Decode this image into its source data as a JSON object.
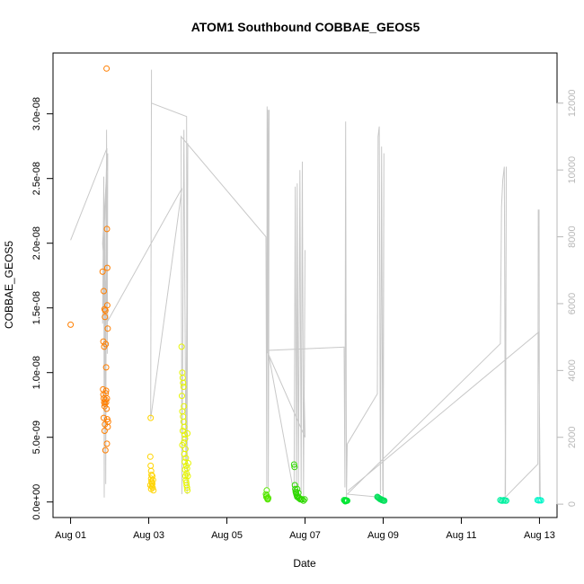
{
  "chart_data": {
    "type": "scatter",
    "title": "ATOM1 Southbound COBBAE_GEOS5",
    "xlabel": "Date",
    "ylabel": "COBBAE_GEOS5",
    "x_unit": "days",
    "x_ticks": [
      {
        "value": 1,
        "label": "Aug 01"
      },
      {
        "value": 3,
        "label": "Aug 03"
      },
      {
        "value": 5,
        "label": "Aug 05"
      },
      {
        "value": 7,
        "label": "Aug 07"
      },
      {
        "value": 9,
        "label": "Aug 09"
      },
      {
        "value": 11,
        "label": "Aug 11"
      },
      {
        "value": 13,
        "label": "Aug 13"
      }
    ],
    "xlim": [
      0.55,
      13.45
    ],
    "ylim": [
      -1.2e-09,
      3.47e-08
    ],
    "y_ticks": [
      {
        "value": 0,
        "label": "0.0e+00"
      },
      {
        "value": 5e-09,
        "label": "5.0e-09"
      },
      {
        "value": 1e-08,
        "label": "1.0e-08"
      },
      {
        "value": 1.5e-08,
        "label": "1.5e-08"
      },
      {
        "value": 2e-08,
        "label": "2.0e-08"
      },
      {
        "value": 2.5e-08,
        "label": "2.5e-08"
      },
      {
        "value": 3e-08,
        "label": "3.0e-08"
      }
    ],
    "y2lim": [
      -400,
      13500
    ],
    "y2_ticks": [
      {
        "value": 0,
        "label": "0"
      },
      {
        "value": 2000,
        "label": "2000"
      },
      {
        "value": 4000,
        "label": "4000"
      },
      {
        "value": 6000,
        "label": "6000"
      },
      {
        "value": 8000,
        "label": "8000"
      },
      {
        "value": 10000,
        "label": "10000"
      },
      {
        "value": 12000,
        "label": "12000"
      }
    ],
    "grid": false,
    "legend": "none",
    "point_style": "open circles, colored by flight (orange to cyan)",
    "altitude_line_color": "#c8c8c8",
    "series": [
      {
        "color": "#ff7f00",
        "points": [
          [
            1.0,
            1.37e-08
          ],
          [
            1.82,
            1.78e-08
          ],
          [
            1.85,
            1.63e-08
          ],
          [
            1.87,
            1.49e-08
          ],
          [
            1.88,
            1.43e-08
          ],
          [
            1.89,
            1.48e-08
          ],
          [
            1.9,
            1.22e-08
          ],
          [
            1.91,
            1.04e-08
          ],
          [
            1.92,
            3.35e-08
          ],
          [
            1.93,
            2.11e-08
          ],
          [
            1.94,
            1.81e-08
          ],
          [
            1.84,
            1.24e-08
          ],
          [
            1.86,
            1.2e-08
          ],
          [
            1.95,
            1.34e-08
          ],
          [
            1.94,
            1.52e-08
          ],
          [
            1.83,
            8.7e-09
          ],
          [
            1.84,
            8.3e-09
          ],
          [
            1.85,
            8e-09
          ],
          [
            1.86,
            7.7e-09
          ],
          [
            1.87,
            7.4e-09
          ],
          [
            1.88,
            7.6e-09
          ],
          [
            1.89,
            7.9e-09
          ],
          [
            1.9,
            8.4e-09
          ],
          [
            1.91,
            7.7e-09
          ],
          [
            1.92,
            7.2e-09
          ],
          [
            1.93,
            8e-09
          ],
          [
            1.94,
            6.4e-09
          ],
          [
            1.95,
            5.8e-09
          ],
          [
            1.96,
            6.2e-09
          ],
          [
            1.85,
            6.5e-09
          ],
          [
            1.87,
            5.5e-09
          ],
          [
            1.89,
            4e-09
          ],
          [
            1.93,
            4.5e-09
          ],
          [
            1.88,
            6e-09
          ],
          [
            1.91,
            8.6e-09
          ]
        ]
      },
      {
        "color": "#ffd400",
        "points": [
          [
            3.05,
            6.5e-09
          ],
          [
            3.04,
            3.5e-09
          ],
          [
            3.05,
            2.8e-09
          ],
          [
            3.06,
            2.4e-09
          ],
          [
            3.07,
            2.1e-09
          ],
          [
            3.06,
            1.8e-09
          ],
          [
            3.07,
            1.6e-09
          ],
          [
            3.08,
            1.5e-09
          ],
          [
            3.09,
            1.4e-09
          ],
          [
            3.08,
            1.2e-09
          ],
          [
            3.1,
            1.1e-09
          ],
          [
            3.06,
            1e-09
          ],
          [
            3.12,
            9e-10
          ],
          [
            3.04,
            1.3e-09
          ],
          [
            3.09,
            2e-09
          ],
          [
            3.11,
            1.7e-09
          ]
        ]
      },
      {
        "color": "#e6f500",
        "points": [
          [
            3.84,
            1.2e-08
          ],
          [
            3.86,
            1e-08
          ],
          [
            3.87,
            9.6e-09
          ],
          [
            3.88,
            9.2e-09
          ],
          [
            3.89,
            8.9e-09
          ],
          [
            3.85,
            8.2e-09
          ],
          [
            3.9,
            7.4e-09
          ],
          [
            3.86,
            7e-09
          ],
          [
            3.88,
            6.6e-09
          ],
          [
            3.89,
            6.2e-09
          ],
          [
            3.91,
            5.8e-09
          ],
          [
            3.87,
            5.5e-09
          ],
          [
            3.92,
            5.2e-09
          ],
          [
            3.93,
            4.9e-09
          ],
          [
            3.9,
            4.6e-09
          ],
          [
            3.86,
            4.4e-09
          ],
          [
            3.94,
            4.1e-09
          ],
          [
            3.91,
            3.7e-09
          ],
          [
            3.95,
            3.4e-09
          ],
          [
            3.92,
            3.1e-09
          ],
          [
            3.96,
            2.8e-09
          ],
          [
            3.93,
            2.5e-09
          ],
          [
            3.97,
            2.2e-09
          ],
          [
            3.94,
            2e-09
          ],
          [
            3.95,
            1.7e-09
          ],
          [
            3.96,
            1.5e-09
          ],
          [
            3.97,
            1.3e-09
          ],
          [
            3.98,
            1.1e-09
          ],
          [
            3.99,
            9e-10
          ],
          [
            4.0,
            2e-09
          ],
          [
            4.01,
            3e-09
          ],
          [
            3.98,
            2.6e-09
          ],
          [
            3.99,
            5.3e-09
          ]
        ]
      },
      {
        "color": "#55e600",
        "points": [
          [
            6.02,
            9e-10
          ],
          [
            6.0,
            6e-10
          ],
          [
            6.01,
            4e-10
          ],
          [
            6.03,
            3e-10
          ],
          [
            6.04,
            2e-10
          ],
          [
            6.05,
            2e-10
          ],
          [
            6.06,
            3e-10
          ],
          [
            6.02,
            5e-10
          ]
        ]
      },
      {
        "color": "#2fd800",
        "points": [
          [
            6.72,
            2.9e-09
          ],
          [
            6.73,
            2.7e-09
          ],
          [
            6.74,
            1.3e-09
          ],
          [
            6.75,
            1e-09
          ],
          [
            6.76,
            8e-10
          ],
          [
            6.77,
            7e-10
          ],
          [
            6.78,
            6e-10
          ],
          [
            6.79,
            5e-10
          ],
          [
            6.8,
            4e-10
          ],
          [
            6.82,
            4e-10
          ],
          [
            6.84,
            3e-10
          ],
          [
            6.86,
            3e-10
          ],
          [
            6.88,
            2e-10
          ],
          [
            6.9,
            2e-10
          ],
          [
            6.93,
            2e-10
          ],
          [
            6.96,
            1e-10
          ],
          [
            6.99,
            2e-10
          ],
          [
            6.8,
            1e-09
          ],
          [
            6.83,
            7e-10
          ]
        ]
      },
      {
        "color": "#00e633",
        "points": [
          [
            8.0,
            1.5e-10
          ],
          [
            8.02,
            1e-10
          ],
          [
            8.04,
            1.5e-10
          ],
          [
            8.06,
            1e-10
          ],
          [
            8.08,
            1e-10
          ],
          [
            8.03,
            5e-11
          ]
        ]
      },
      {
        "color": "#00e05a",
        "points": [
          [
            8.85,
            4e-10
          ],
          [
            8.87,
            3.5e-10
          ],
          [
            8.89,
            3e-10
          ],
          [
            8.91,
            2.5e-10
          ],
          [
            8.93,
            2e-10
          ],
          [
            8.95,
            2e-10
          ],
          [
            8.97,
            1.5e-10
          ],
          [
            8.99,
            1.5e-10
          ],
          [
            9.01,
            1e-10
          ],
          [
            9.03,
            1e-10
          ]
        ]
      },
      {
        "color": "#00f0a0",
        "points": [
          [
            12.0,
            1.5e-10
          ],
          [
            12.03,
            1e-10
          ],
          [
            12.06,
            1e-10
          ],
          [
            12.09,
            1.5e-10
          ],
          [
            12.12,
            1e-10
          ],
          [
            12.15,
            1e-10
          ]
        ]
      },
      {
        "color": "#00f5c8",
        "points": [
          [
            12.95,
            1.5e-10
          ],
          [
            12.98,
            1.2e-10
          ],
          [
            13.01,
            1.5e-10
          ],
          [
            13.04,
            1.2e-10
          ]
        ]
      }
    ],
    "altitude_trace": [
      [
        1.0,
        7900
      ],
      [
        1.93,
        10650
      ],
      [
        1.82,
        5400
      ],
      [
        1.85,
        9800
      ],
      [
        1.86,
        200
      ],
      [
        1.88,
        9000
      ],
      [
        1.9,
        600
      ],
      [
        1.92,
        11200
      ],
      [
        1.94,
        4500
      ],
      [
        1.95,
        10500
      ],
      [
        1.82,
        7800
      ],
      [
        1.96,
        5500
      ],
      [
        3.85,
        9450
      ],
      [
        3.05,
        2550
      ],
      [
        3.07,
        13000
      ],
      [
        3.07,
        12000
      ],
      [
        3.97,
        11600
      ],
      [
        3.98,
        300
      ],
      [
        4.0,
        10800
      ],
      [
        3.95,
        1200
      ],
      [
        3.9,
        11200
      ],
      [
        3.85,
        300
      ],
      [
        3.83,
        11000
      ],
      [
        6.0,
        8000
      ],
      [
        6.02,
        500
      ],
      [
        6.03,
        11900
      ],
      [
        6.04,
        4600
      ],
      [
        6.05,
        11800
      ],
      [
        6.06,
        500
      ],
      [
        6.07,
        4500
      ],
      [
        6.08,
        11800
      ],
      [
        6.02,
        4600
      ],
      [
        7.0,
        2000
      ],
      [
        6.98,
        3200
      ],
      [
        7.0,
        7600
      ],
      [
        6.96,
        200
      ],
      [
        6.93,
        10250
      ],
      [
        6.9,
        300
      ],
      [
        6.87,
        10000
      ],
      [
        6.83,
        500
      ],
      [
        6.8,
        9600
      ],
      [
        6.78,
        500
      ],
      [
        6.75,
        9500
      ],
      [
        6.72,
        300
      ],
      [
        6.05,
        4600
      ],
      [
        8.0,
        4700
      ],
      [
        8.02,
        500
      ],
      [
        8.04,
        11450
      ],
      [
        8.06,
        200
      ],
      [
        8.08,
        1800
      ],
      [
        8.85,
        3300
      ],
      [
        8.87,
        11000
      ],
      [
        8.9,
        11300
      ],
      [
        8.93,
        300
      ],
      [
        8.96,
        10700
      ],
      [
        8.99,
        400
      ],
      [
        9.02,
        10500
      ],
      [
        9.0,
        200
      ],
      [
        8.08,
        300
      ],
      [
        12.0,
        4800
      ],
      [
        12.03,
        8900
      ],
      [
        12.06,
        9700
      ],
      [
        12.1,
        10100
      ],
      [
        12.13,
        300
      ],
      [
        12.15,
        10100
      ],
      [
        12.12,
        200
      ],
      [
        12.96,
        1200
      ],
      [
        12.97,
        8800
      ],
      [
        12.99,
        8800
      ],
      [
        13.0,
        300
      ],
      [
        13.02,
        200
      ],
      [
        12.98,
        5150
      ],
      [
        8.1,
        400
      ]
    ]
  }
}
